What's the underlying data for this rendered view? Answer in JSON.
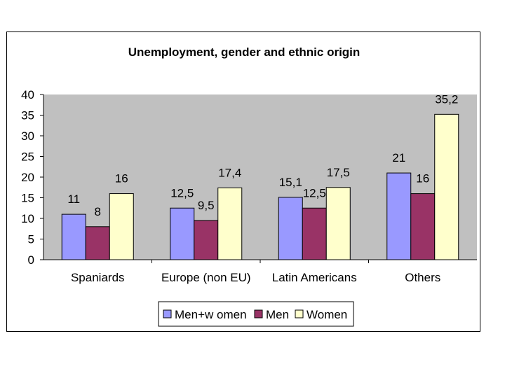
{
  "chart_data": {
    "type": "bar",
    "title": "Unemployment, gender and ethnic origin",
    "categories": [
      "Spaniards",
      "Europe (non EU)",
      "Latin Americans",
      "Others"
    ],
    "series": [
      {
        "name": "Men+w omen",
        "values": [
          11,
          12.5,
          15.1,
          21
        ],
        "labels": [
          "11",
          "12,5",
          "15,1",
          "21"
        ],
        "color": "#9999ff"
      },
      {
        "name": "Men",
        "values": [
          8,
          9.5,
          12.5,
          16
        ],
        "labels": [
          "8",
          "9,5",
          "12,5",
          "16"
        ],
        "color": "#993366"
      },
      {
        "name": "Women",
        "values": [
          16,
          17.4,
          17.5,
          35.2
        ],
        "labels": [
          "16",
          "17,4",
          "17,5",
          "35,2"
        ],
        "color": "#ffffcc"
      }
    ],
    "ylim": [
      0,
      40
    ],
    "yticks": [
      0,
      5,
      10,
      15,
      20,
      25,
      30,
      35,
      40
    ],
    "plot_background": "#c0c0c0",
    "legend_position": "bottom",
    "xlabel": "",
    "ylabel": ""
  }
}
